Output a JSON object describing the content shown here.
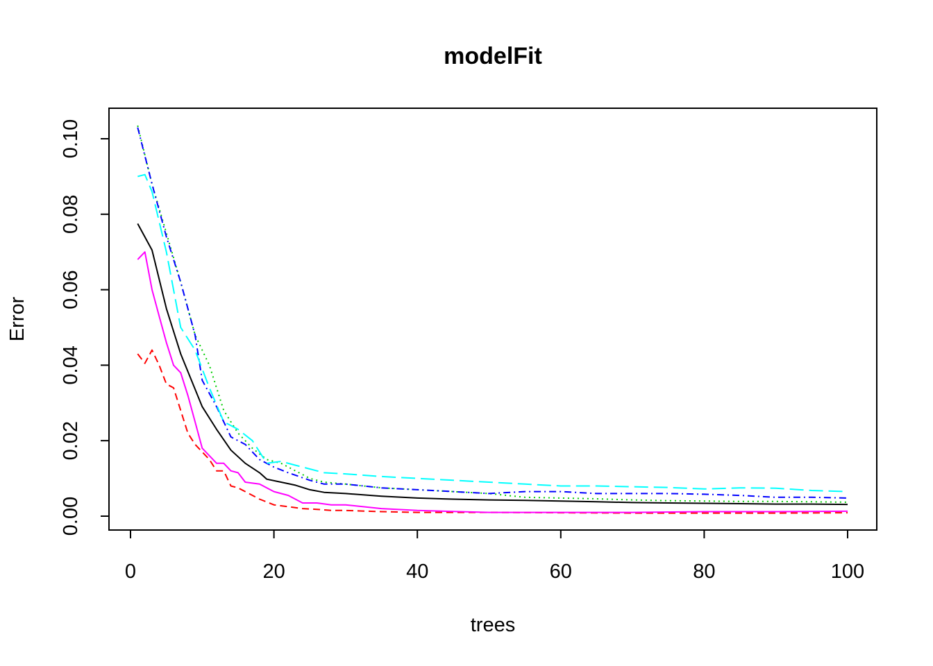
{
  "chart_data": {
    "type": "line",
    "title": "modelFit",
    "xlabel": "trees",
    "ylabel": "Error",
    "xlim": [
      0,
      100
    ],
    "ylim": [
      0,
      0.1
    ],
    "xticks": [
      0,
      20,
      40,
      60,
      80,
      100
    ],
    "yticks": [
      0.0,
      0.02,
      0.04,
      0.06,
      0.08,
      0.1
    ],
    "ytick_labels": [
      "0.00",
      "0.02",
      "0.04",
      "0.06",
      "0.08",
      "0.10"
    ],
    "xtick_labels": [
      "0",
      "20",
      "40",
      "60",
      "80",
      "100"
    ],
    "grid": false,
    "legend": "none",
    "series": [
      {
        "color": "#000000",
        "dash": "solid",
        "x": [
          1,
          3,
          5,
          7,
          10,
          12,
          14,
          16,
          18,
          19,
          21,
          23,
          25,
          27,
          30,
          35,
          40,
          45,
          50,
          55,
          60,
          65,
          70,
          75,
          80,
          85,
          90,
          95,
          100
        ],
        "y": [
          0.0775,
          0.0705,
          0.055,
          0.043,
          0.029,
          0.023,
          0.0175,
          0.014,
          0.0115,
          0.0098,
          0.009,
          0.0082,
          0.007,
          0.0063,
          0.006,
          0.0053,
          0.0048,
          0.0045,
          0.0043,
          0.0042,
          0.004,
          0.0038,
          0.0036,
          0.0035,
          0.0034,
          0.0033,
          0.0032,
          0.0032,
          0.0031
        ]
      },
      {
        "color": "#ff0000",
        "dash": "dashed",
        "x": [
          1,
          2,
          3,
          4,
          5,
          6,
          7,
          8,
          9,
          10,
          11,
          12,
          13,
          14,
          15,
          16,
          18,
          20,
          22,
          24,
          26,
          28,
          30,
          35,
          40,
          50,
          60,
          70,
          80,
          90,
          100
        ],
        "y": [
          0.043,
          0.0405,
          0.044,
          0.04,
          0.035,
          0.034,
          0.028,
          0.022,
          0.019,
          0.017,
          0.015,
          0.012,
          0.012,
          0.008,
          0.0075,
          0.0065,
          0.0045,
          0.003,
          0.0025,
          0.002,
          0.0018,
          0.0015,
          0.0015,
          0.0012,
          0.001,
          0.001,
          0.0009,
          0.0008,
          0.0008,
          0.0008,
          0.0009
        ]
      },
      {
        "color": "#00cd00",
        "dash": "dotted",
        "x": [
          1,
          3,
          5,
          7,
          9,
          11,
          13,
          15,
          17,
          19,
          21,
          23,
          25,
          27,
          30,
          35,
          40,
          45,
          50,
          55,
          60,
          65,
          70,
          75,
          80,
          85,
          90,
          95,
          100
        ],
        "y": [
          0.1035,
          0.088,
          0.075,
          0.062,
          0.048,
          0.04,
          0.028,
          0.022,
          0.018,
          0.015,
          0.014,
          0.012,
          0.01,
          0.009,
          0.0085,
          0.0075,
          0.007,
          0.0065,
          0.006,
          0.005,
          0.0048,
          0.0046,
          0.0043,
          0.0041,
          0.004,
          0.0039,
          0.0039,
          0.0038,
          0.0037
        ]
      },
      {
        "color": "#0000ff",
        "dash": "dashdot",
        "x": [
          1,
          3,
          5,
          7,
          9,
          10,
          12,
          14,
          16,
          18,
          20,
          22,
          25,
          27,
          30,
          35,
          40,
          45,
          50,
          55,
          60,
          65,
          70,
          75,
          80,
          85,
          90,
          95,
          100
        ],
        "y": [
          0.103,
          0.088,
          0.074,
          0.062,
          0.048,
          0.036,
          0.029,
          0.021,
          0.019,
          0.015,
          0.013,
          0.0115,
          0.0095,
          0.0085,
          0.0085,
          0.0075,
          0.007,
          0.0065,
          0.006,
          0.0065,
          0.0065,
          0.006,
          0.006,
          0.006,
          0.0058,
          0.0055,
          0.005,
          0.005,
          0.0048
        ]
      },
      {
        "color": "#00ffff",
        "dash": "longdash",
        "x": [
          1,
          2,
          3,
          5,
          7,
          9,
          11,
          13,
          15,
          17,
          19,
          21,
          23,
          25,
          27,
          30,
          35,
          40,
          45,
          50,
          55,
          60,
          65,
          70,
          75,
          80,
          85,
          90,
          95,
          100
        ],
        "y": [
          0.09,
          0.0905,
          0.086,
          0.07,
          0.05,
          0.044,
          0.034,
          0.025,
          0.023,
          0.02,
          0.014,
          0.0145,
          0.0135,
          0.0125,
          0.0115,
          0.0112,
          0.0105,
          0.01,
          0.0095,
          0.009,
          0.0085,
          0.008,
          0.008,
          0.0078,
          0.0076,
          0.0072,
          0.0075,
          0.0074,
          0.0068,
          0.0065
        ]
      },
      {
        "color": "#ff00ff",
        "dash": "solid",
        "x": [
          1,
          2,
          3,
          4,
          5,
          6,
          7,
          8,
          9,
          10,
          12,
          13,
          14,
          15,
          16,
          18,
          20,
          22,
          24,
          26,
          28,
          30,
          35,
          40,
          50,
          60,
          70,
          80,
          90,
          100
        ],
        "y": [
          0.068,
          0.07,
          0.06,
          0.053,
          0.046,
          0.04,
          0.038,
          0.032,
          0.025,
          0.018,
          0.014,
          0.014,
          0.012,
          0.0115,
          0.009,
          0.0085,
          0.0065,
          0.0055,
          0.0035,
          0.0035,
          0.003,
          0.003,
          0.002,
          0.0015,
          0.001,
          0.001,
          0.001,
          0.0012,
          0.0012,
          0.0013
        ]
      }
    ]
  }
}
